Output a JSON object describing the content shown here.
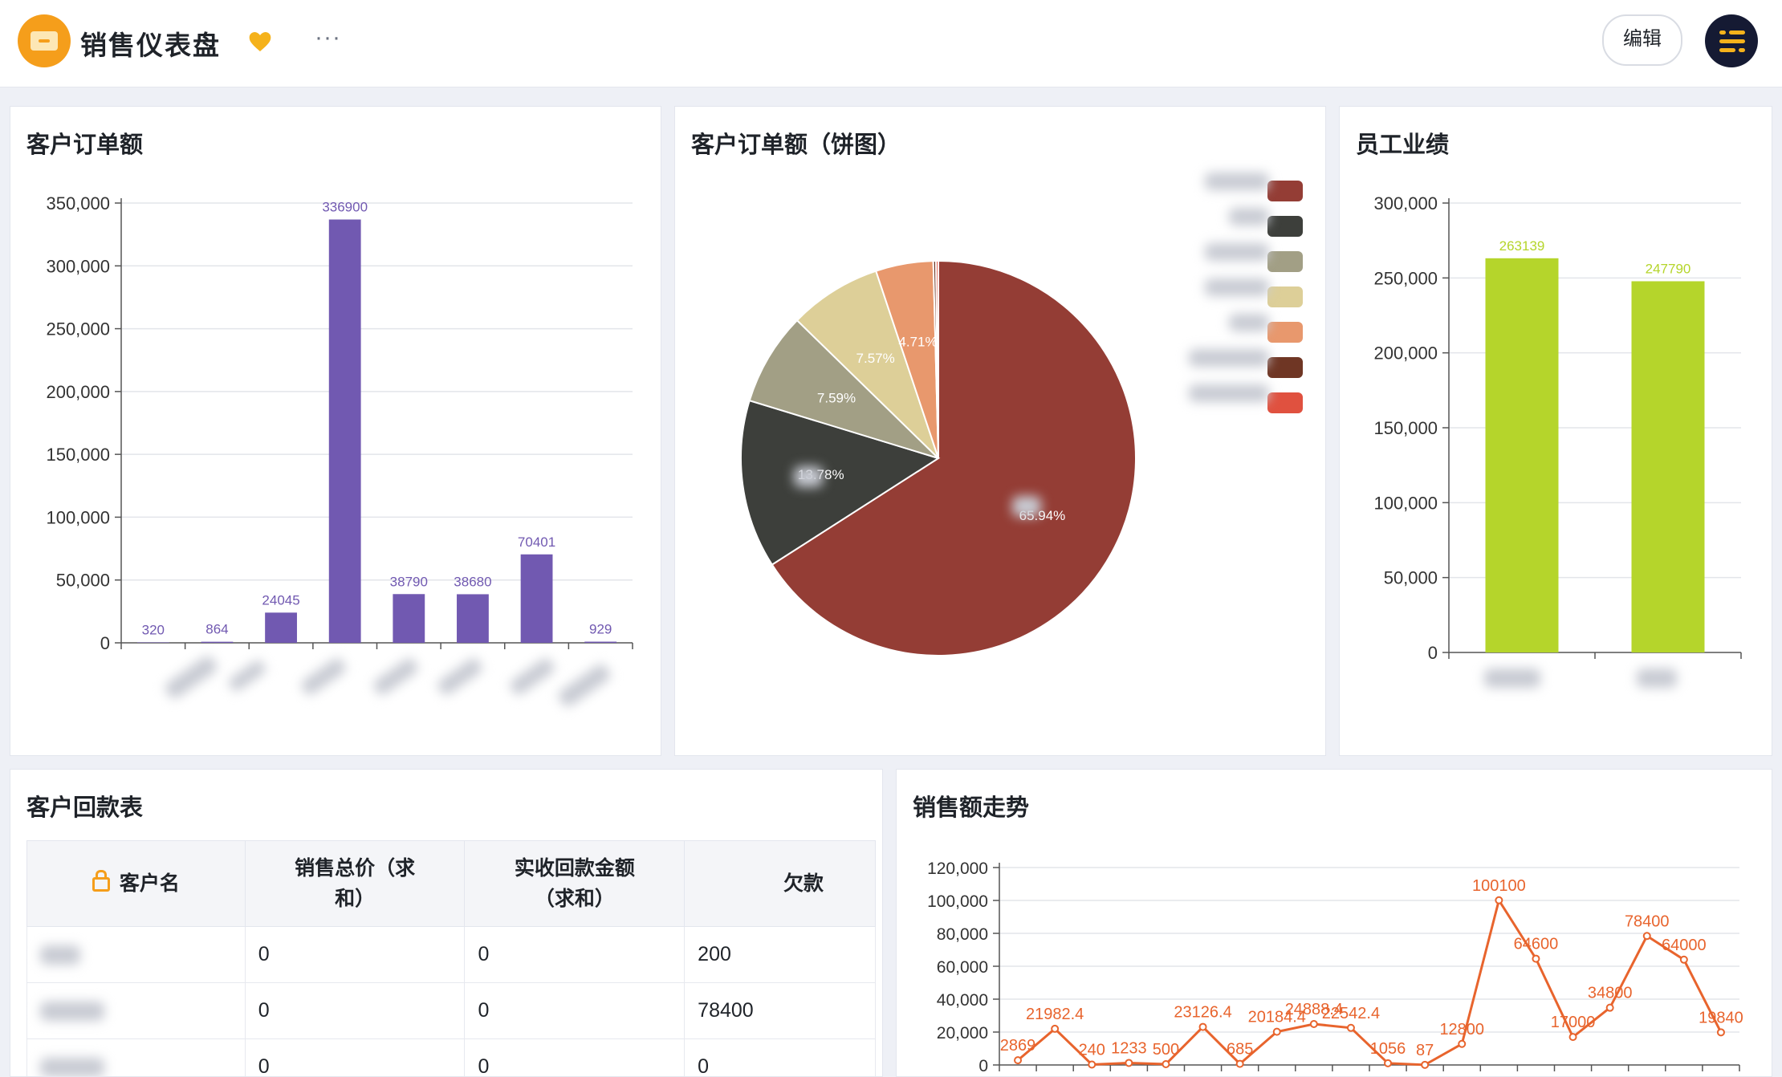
{
  "app": {
    "title": "销售仪表盘",
    "more_label": "···",
    "edit_label": "编辑"
  },
  "colors": {
    "accent": "#f59e1b",
    "purple": "#7159b1",
    "lime": "#b5d52b",
    "orange_line": "#e8642d"
  },
  "panels": {
    "orders_bar": {
      "title": "客户订单额"
    },
    "orders_pie": {
      "title": "客户订单额（饼图）"
    },
    "staff": {
      "title": "员工业绩"
    },
    "payments": {
      "title": "客户回款表"
    },
    "trend": {
      "title": "销售额走势"
    }
  },
  "chart_data": [
    {
      "id": "orders_bar",
      "type": "bar",
      "title": "客户订单额",
      "categories": [
        "",
        "",
        "",
        "",
        "",
        "",
        "",
        ""
      ],
      "values": [
        320,
        864,
        24045,
        336900,
        38790,
        38680,
        70401,
        929
      ],
      "ylim": [
        0,
        350000
      ],
      "yticks": [
        0,
        50000,
        100000,
        150000,
        200000,
        250000,
        300000,
        350000
      ],
      "ytick_labels": [
        "0",
        "50,000",
        "100,000",
        "150,000",
        "200,000",
        "250,000",
        "300,000",
        "350,000"
      ],
      "grid": true,
      "color": "#7159b1"
    },
    {
      "id": "orders_pie",
      "type": "pie",
      "title": "客户订单额（饼图）",
      "slices": [
        {
          "value": 65.94,
          "label": "65.94%",
          "color": "#943d35"
        },
        {
          "value": 13.78,
          "label": "13.78%",
          "color": "#3d3f3b"
        },
        {
          "value": 7.59,
          "label": "7.59%",
          "color": "#a29f85"
        },
        {
          "value": 7.57,
          "label": "7.57%",
          "color": "#ddcf98"
        },
        {
          "value": 4.71,
          "label": "4.71%",
          "color": "#e8986d"
        },
        {
          "value": 0.22,
          "label": "",
          "color": "#6f3624"
        },
        {
          "value": 0.19,
          "label": "",
          "color": "#e0513f"
        }
      ],
      "legend_colors": [
        "#943d35",
        "#3d3f3b",
        "#a29f85",
        "#ddcf98",
        "#e8986d",
        "#6f3624",
        "#e0513f"
      ],
      "legend_placement": "top-right"
    },
    {
      "id": "staff",
      "type": "bar",
      "title": "员工业绩",
      "categories": [
        "",
        ""
      ],
      "values": [
        263139,
        247790
      ],
      "ylim": [
        0,
        300000
      ],
      "yticks": [
        0,
        50000,
        100000,
        150000,
        200000,
        250000,
        300000
      ],
      "ytick_labels": [
        "0",
        "50,000",
        "100,000",
        "150,000",
        "200,000",
        "250,000",
        "300,000"
      ],
      "grid": true,
      "color": "#b5d52b"
    },
    {
      "id": "trend",
      "type": "line",
      "title": "销售额走势",
      "values": [
        2869,
        21982.4,
        240,
        1233,
        500,
        23126.4,
        685,
        20184.4,
        24888.4,
        22542.4,
        1056,
        87,
        12800,
        100100,
        64600,
        17000,
        34800,
        78400,
        64000,
        19840
      ],
      "labels": [
        "2869",
        "21982.4",
        "240",
        "1233",
        "500",
        "23126.4",
        "685",
        "20184.4",
        "24888.4",
        "22542.4",
        "1056",
        "87",
        "12800",
        "100100",
        "64600",
        "17000",
        "34800",
        "78400",
        "64000",
        "19840"
      ],
      "ylim": [
        0,
        120000
      ],
      "yticks": [
        0,
        20000,
        40000,
        60000,
        80000,
        100000,
        120000
      ],
      "ytick_labels": [
        "0",
        "20,000",
        "40,000",
        "60,000",
        "80,000",
        "100,000",
        "120,000"
      ],
      "grid": true,
      "color": "#e8642d"
    }
  ],
  "payments_table": {
    "headers": [
      "客户名",
      "销售总价（求和）",
      "实收回款金额（求和）",
      "欠款"
    ],
    "header_lines": [
      [
        "客户名"
      ],
      [
        "销售总价（求",
        "和）"
      ],
      [
        "实收回款金额",
        "（求和）"
      ],
      [
        "欠款"
      ]
    ],
    "rows": [
      {
        "total": "0",
        "received": "0",
        "debt": "200"
      },
      {
        "total": "0",
        "received": "0",
        "debt": "78400"
      },
      {
        "total": "0",
        "received": "0",
        "debt": "0"
      }
    ]
  }
}
